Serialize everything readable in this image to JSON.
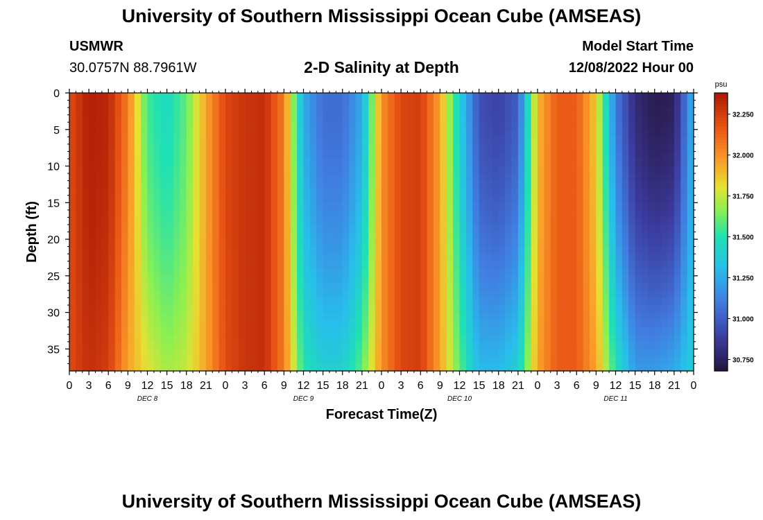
{
  "header": {
    "title": "University of Southern Mississippi Ocean Cube (AMSEAS)",
    "station_name": "USMWR",
    "station_coords": "30.0757N  88.7961W",
    "chart_title": "2-D Salinity at Depth",
    "start_label": "Model Start Time",
    "start_value": "12/08/2022 Hour 00"
  },
  "footer": {
    "title": "University of Southern Mississippi Ocean Cube (AMSEAS)"
  },
  "chart_data": {
    "type": "heatmap",
    "title": "2-D Salinity at Depth",
    "xlabel": "Forecast Time(Z)",
    "ylabel": "Depth (ft)",
    "x_range_hours": [
      0,
      96
    ],
    "x_tick_step_hours": 3,
    "x_tick_labels": [
      "0",
      "3",
      "6",
      "9",
      "12",
      "15",
      "18",
      "21",
      "0",
      "3",
      "6",
      "9",
      "12",
      "15",
      "18",
      "21",
      "0",
      "3",
      "6",
      "9",
      "12",
      "15",
      "18",
      "21",
      "0",
      "3",
      "6",
      "9",
      "12",
      "15",
      "18",
      "21",
      "0"
    ],
    "day_labels": [
      {
        "label": "DEC 8",
        "hour": 12
      },
      {
        "label": "DEC 9",
        "hour": 36
      },
      {
        "label": "DEC 10",
        "hour": 60
      },
      {
        "label": "DEC 11",
        "hour": 84
      }
    ],
    "ylim": [
      0,
      38
    ],
    "y_ticks": [
      0,
      5,
      10,
      15,
      20,
      25,
      30,
      35
    ],
    "colorbar": {
      "unit": "psu",
      "min": 30.68,
      "max": 32.38,
      "ticks": [
        32.25,
        32.0,
        31.75,
        31.5,
        31.25,
        31.0,
        30.75
      ],
      "tick_labels": [
        "32.250",
        "32.000",
        "31.750",
        "31.500",
        "31.250",
        "31.000",
        "30.750"
      ]
    },
    "depth_levels_ft": [
      0,
      5,
      10,
      15,
      20,
      25,
      30,
      35,
      38
    ],
    "time_hours": [
      0,
      3,
      6,
      9,
      12,
      15,
      18,
      21,
      24,
      27,
      30,
      33,
      36,
      39,
      42,
      45,
      48,
      51,
      54,
      57,
      60,
      63,
      66,
      69,
      72,
      75,
      78,
      81,
      84,
      87,
      90,
      93,
      96
    ],
    "surface_salinity_psu": [
      32.2,
      32.36,
      32.33,
      32.05,
      31.55,
      31.45,
      31.6,
      31.95,
      32.22,
      32.28,
      32.3,
      32.05,
      31.25,
      31.05,
      31.05,
      31.25,
      32.0,
      32.22,
      32.25,
      31.95,
      31.4,
      30.95,
      30.9,
      31.0,
      31.9,
      32.15,
      32.15,
      31.85,
      31.1,
      30.8,
      30.72,
      30.75,
      31.3
    ],
    "bottom_salinity_psu": [
      32.2,
      32.3,
      32.25,
      31.95,
      31.8,
      31.7,
      31.75,
      31.95,
      32.2,
      32.28,
      32.3,
      32.05,
      31.5,
      31.4,
      31.4,
      31.6,
      32.0,
      32.22,
      32.25,
      31.95,
      31.6,
      31.3,
      31.3,
      31.4,
      31.95,
      32.15,
      32.15,
      31.95,
      31.5,
      31.2,
      31.2,
      31.25,
      31.4
    ]
  }
}
